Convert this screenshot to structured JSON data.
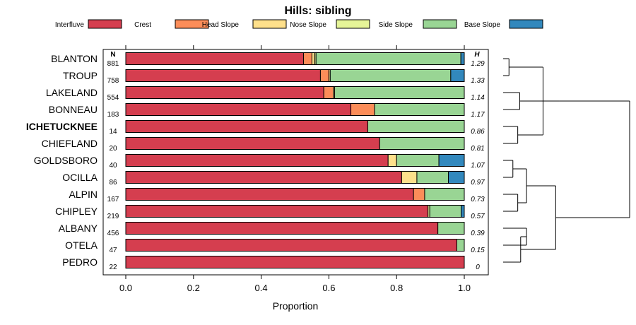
{
  "chart_data": {
    "type": "bar",
    "subtype": "stacked-horizontal-proportion",
    "title": "Hills: sibling",
    "xlabel": "Proportion",
    "ylabel": "",
    "xlim": [
      0,
      1
    ],
    "xticks": [
      "0.0",
      "0.2",
      "0.4",
      "0.6",
      "0.8",
      "1.0"
    ],
    "legend_position": "top",
    "n_header": "N",
    "h_header": "H",
    "focus_series": "ICHETUCKNEE",
    "categories": [
      "BLANTON",
      "TROUP",
      "LAKELAND",
      "BONNEAU",
      "ICHETUCKNEE",
      "CHIEFLAND",
      "GOLDSBORO",
      "OCILLA",
      "ALPIN",
      "CHIPLEY",
      "ALBANY",
      "OTELA",
      "PEDRO"
    ],
    "n_values": [
      "881",
      "758",
      "554",
      "183",
      "14",
      "20",
      "40",
      "86",
      "167",
      "219",
      "456",
      "47",
      "22"
    ],
    "h_values": [
      "1.29",
      "1.33",
      "1.14",
      "1.17",
      "0.86",
      "0.81",
      "1.07",
      "0.97",
      "0.73",
      "0.57",
      "0.39",
      "0.15",
      "0"
    ],
    "series": [
      {
        "name": "Interfluve",
        "color": "#D53E4F",
        "values": [
          0.525,
          0.575,
          0.585,
          0.665,
          0.715,
          0.75,
          0.775,
          0.815,
          0.85,
          0.893,
          0.922,
          0.978,
          1.0
        ]
      },
      {
        "name": "Crest",
        "color": "#FC8D59",
        "values": [
          0.025,
          0.025,
          0.028,
          0.07,
          0.0,
          0.0,
          0.0,
          0.0,
          0.033,
          0.0,
          0.0,
          0.0,
          0.0
        ]
      },
      {
        "name": "Head Slope",
        "color": "#FEE08B",
        "values": [
          0.008,
          0.004,
          0.004,
          0.0,
          0.0,
          0.0,
          0.025,
          0.045,
          0.0,
          0.0,
          0.0,
          0.0,
          0.0
        ]
      },
      {
        "name": "Nose Slope",
        "color": "#E6F598",
        "values": [
          0.004,
          0.0,
          0.0,
          0.0,
          0.0,
          0.0,
          0.0,
          0.0,
          0.0,
          0.005,
          0.0,
          0.0,
          0.0
        ]
      },
      {
        "name": "Side Slope",
        "color": "#99D594",
        "values": [
          0.428,
          0.356,
          0.383,
          0.265,
          0.285,
          0.25,
          0.125,
          0.093,
          0.117,
          0.093,
          0.078,
          0.022,
          0.0
        ]
      },
      {
        "name": "Base Slope",
        "color": "#3288BD",
        "values": [
          0.01,
          0.04,
          0.0,
          0.0,
          0.0,
          0.0,
          0.075,
          0.047,
          0.0,
          0.009,
          0.0,
          0.0,
          0.0
        ]
      }
    ],
    "dendrogram": {
      "merges": [
        [
          [
            0,
            1
          ],
          0.3
        ],
        [
          [
            2,
            3
          ],
          0.85
        ],
        [
          [
            4,
            5
          ],
          0.75
        ],
        [
          [
            13,
            15
          ],
          2.05
        ],
        [
          [
            14,
            16
          ],
          2.9
        ],
        [
          [
            6,
            7
          ],
          0.5
        ],
        [
          [
            8,
            9
          ],
          0.75
        ],
        [
          [
            18,
            19
          ],
          1.2
        ],
        [
          [
            10,
            11
          ],
          1.2
        ],
        [
          [
            21,
            12
          ],
          0.9
        ],
        [
          [
            20,
            22
          ],
          2.7
        ],
        [
          [
            17,
            23
          ],
          6.5
        ]
      ],
      "max_height": 6.5
    }
  }
}
